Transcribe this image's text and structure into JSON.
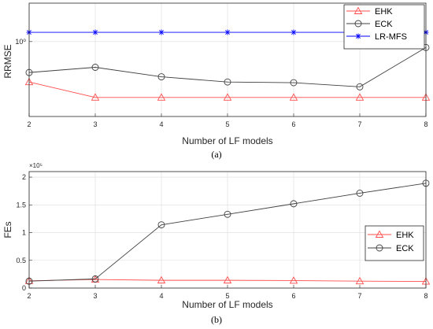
{
  "chart_data": [
    {
      "type": "line",
      "caption": "(a)",
      "xlabel": "Number of LF models",
      "ylabel": "RRMSE",
      "x": [
        2,
        3,
        4,
        5,
        6,
        7,
        8
      ],
      "xlim": [
        2,
        8
      ],
      "yscale": "log",
      "ylim": [
        0.4,
        1.6
      ],
      "ytick_values": [
        1
      ],
      "ytick_labels": [
        "10⁰"
      ],
      "grid": true,
      "legend_position": "top-right",
      "series": [
        {
          "name": "EHK",
          "color": "#ff4d4d",
          "marker": "triangle",
          "values": [
            0.61,
            0.505,
            0.505,
            0.505,
            0.505,
            0.505,
            0.505
          ]
        },
        {
          "name": "ECK",
          "color": "#404040",
          "marker": "circle",
          "values": [
            0.685,
            0.73,
            0.65,
            0.61,
            0.605,
            0.575,
            0.93
          ]
        },
        {
          "name": "LR-MFS",
          "color": "#0000ff",
          "marker": "asterisk",
          "values": [
            1.12,
            1.12,
            1.12,
            1.12,
            1.12,
            1.12,
            1.12
          ]
        }
      ]
    },
    {
      "type": "line",
      "caption": "(b)",
      "xlabel": "Number of LF models",
      "ylabel": "FEs",
      "x": [
        2,
        3,
        4,
        5,
        6,
        7,
        8
      ],
      "xlim": [
        2,
        8
      ],
      "ylim": [
        0,
        2.1
      ],
      "yticks": [
        0,
        0.5,
        1,
        1.5,
        2
      ],
      "ytick_labels": [
        "0",
        "0.5",
        "1",
        "1.5",
        "2"
      ],
      "y_exponent": "×10⁵",
      "grid": true,
      "legend_position": "center-right",
      "series": [
        {
          "name": "EHK",
          "color": "#ff4d4d",
          "marker": "triangle",
          "values": [
            0.13,
            0.155,
            0.14,
            0.14,
            0.135,
            0.125,
            0.12
          ]
        },
        {
          "name": "ECK",
          "color": "#404040",
          "marker": "circle",
          "values": [
            0.125,
            0.165,
            1.14,
            1.33,
            1.52,
            1.71,
            1.89
          ]
        }
      ]
    }
  ]
}
